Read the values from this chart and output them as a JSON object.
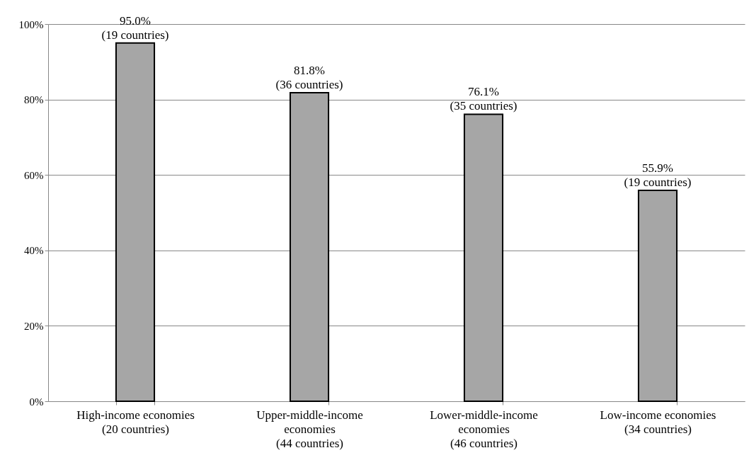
{
  "chart_data": {
    "type": "bar",
    "categories": [
      "High-income economies\n(20 countries)",
      "Upper-middle-income\neconomies\n(44 countries)",
      "Lower-middle-income\neconomies\n(46 countries)",
      "Low-income economies\n(34 countries)"
    ],
    "values": [
      95.0,
      81.8,
      76.1,
      55.9
    ],
    "value_labels": [
      "95.0%\n(19 countries)",
      "81.8%\n(36 countries)",
      "76.1%\n(35 countries)",
      "55.9%\n(19 countries)"
    ],
    "color": "#a6a6a6",
    "ylim": [
      0,
      100
    ],
    "yticks": [
      {
        "value": 0,
        "label": "0%"
      },
      {
        "value": 20,
        "label": "20%"
      },
      {
        "value": 40,
        "label": "40%"
      },
      {
        "value": 60,
        "label": "60%"
      },
      {
        "value": 80,
        "label": "80%"
      },
      {
        "value": 100,
        "label": "100%"
      }
    ],
    "grid": "y"
  }
}
